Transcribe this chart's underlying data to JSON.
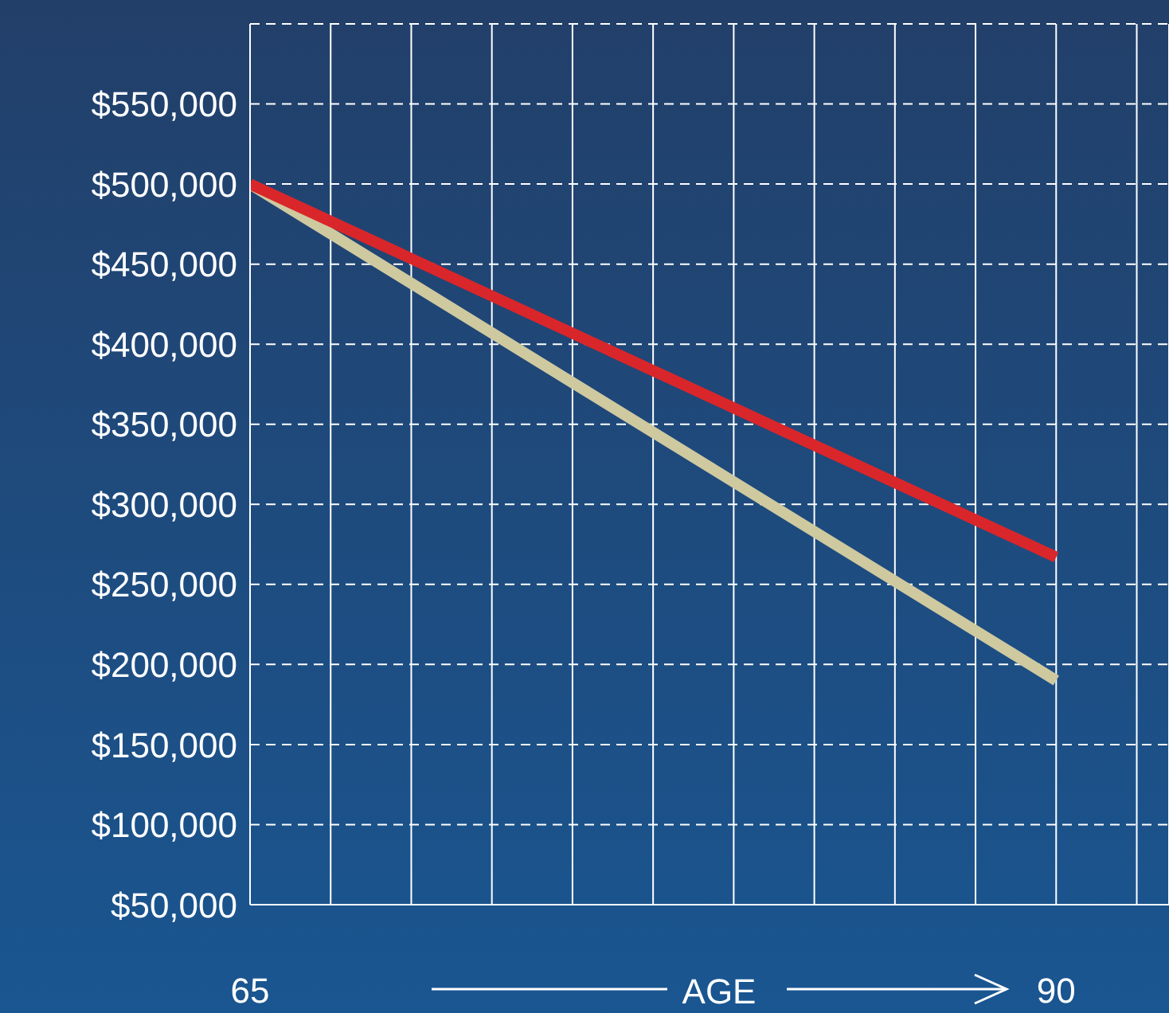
{
  "chart_data": {
    "type": "line",
    "xlabel": "AGE",
    "x": [
      65,
      90
    ],
    "series": [
      {
        "color": "#cfc9a0",
        "values": [
          500000,
          190000
        ]
      },
      {
        "color": "#d9262b",
        "values": [
          500000,
          267000
        ]
      }
    ],
    "xlim": [
      65,
      93.5
    ],
    "xticks": [
      {
        "value": 65,
        "label": "65"
      },
      {
        "value": 67.5,
        "label": null
      },
      {
        "value": 70,
        "label": null
      },
      {
        "value": 72.5,
        "label": null
      },
      {
        "value": 75,
        "label": null
      },
      {
        "value": 77.5,
        "label": null
      },
      {
        "value": 80,
        "label": null
      },
      {
        "value": 82.5,
        "label": null
      },
      {
        "value": 85,
        "label": null
      },
      {
        "value": 87.5,
        "label": null
      },
      {
        "value": 90,
        "label": "90"
      },
      {
        "value": 92.5,
        "label": null
      }
    ],
    "ylim": [
      50000,
      600000
    ],
    "yticks": [
      {
        "value": 50000,
        "label": "$50,000"
      },
      {
        "value": 100000,
        "label": "$100,000"
      },
      {
        "value": 150000,
        "label": "$150,000"
      },
      {
        "value": 200000,
        "label": "$200,000"
      },
      {
        "value": 250000,
        "label": "$250,000"
      },
      {
        "value": 300000,
        "label": "$300,000"
      },
      {
        "value": 350000,
        "label": "$350,000"
      },
      {
        "value": 400000,
        "label": "$400,000"
      },
      {
        "value": 450000,
        "label": "$450,000"
      },
      {
        "value": 500000,
        "label": "$500,000"
      },
      {
        "value": 550000,
        "label": "$550,000"
      }
    ],
    "grid": true,
    "marker": "none",
    "line_style": "solid"
  }
}
